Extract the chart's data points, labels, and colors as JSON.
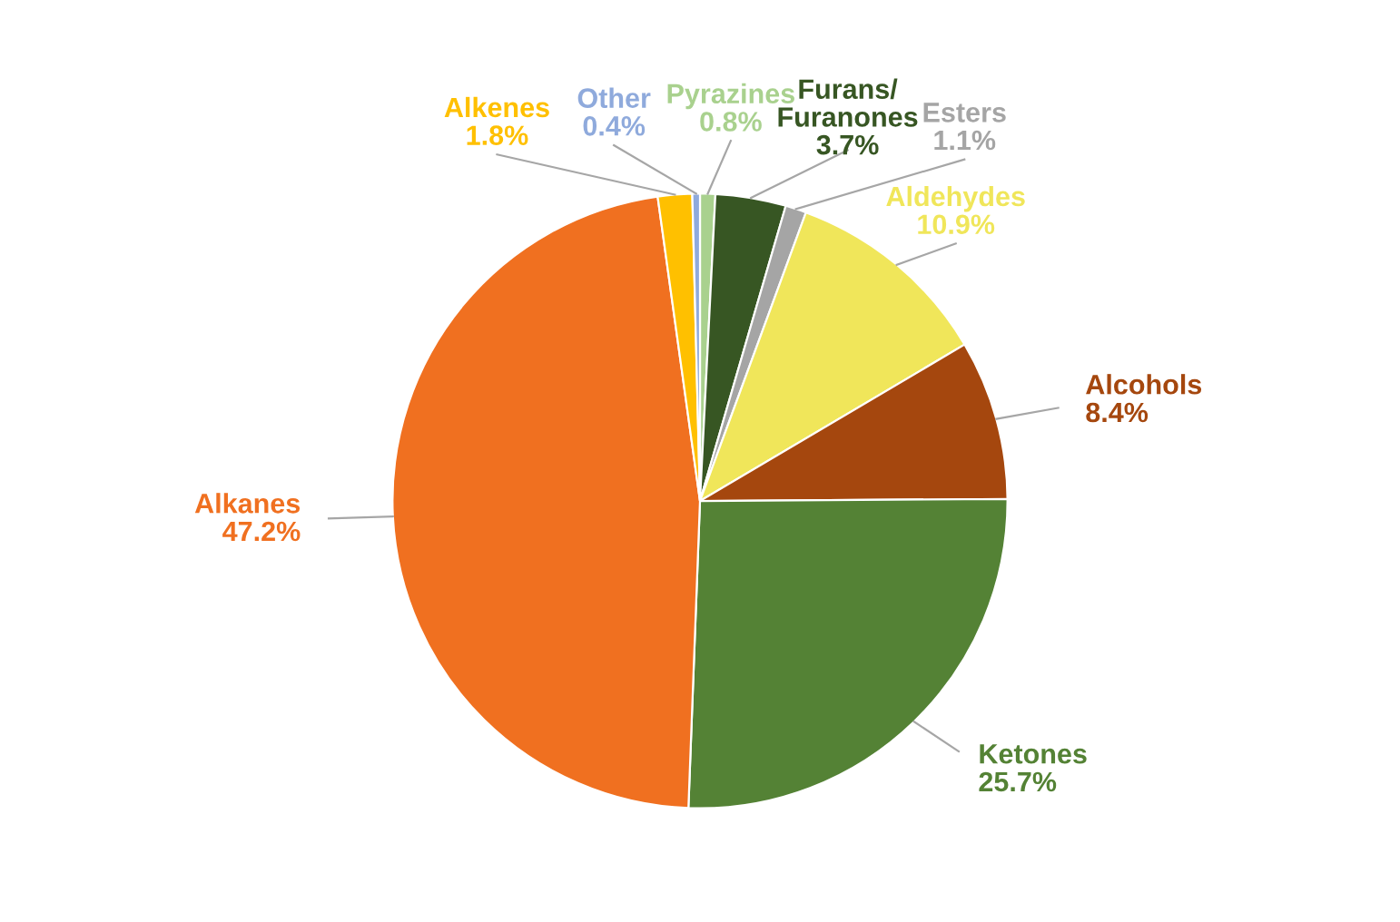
{
  "chart_data": {
    "type": "pie",
    "categories": [
      "Pyrazines",
      "Furans/\nFuranones",
      "Esters",
      "Aldehydes",
      "Alcohols",
      "Ketones",
      "Alkanes",
      "Alkenes",
      "Other"
    ],
    "values": [
      0.8,
      3.7,
      1.1,
      10.9,
      8.4,
      25.7,
      47.2,
      1.8,
      0.4
    ],
    "colors": [
      "#a9d18e",
      "#375623",
      "#a5a5a5",
      "#f0e65a",
      "#a5470e",
      "#548235",
      "#f07020",
      "#ffc000",
      "#8faadc"
    ],
    "value_labels": [
      "0.8%",
      "3.7%",
      "1.1%",
      "10.9%",
      "8.4%",
      "25.7%",
      "47.2%",
      "1.8%",
      "0.4%"
    ]
  }
}
